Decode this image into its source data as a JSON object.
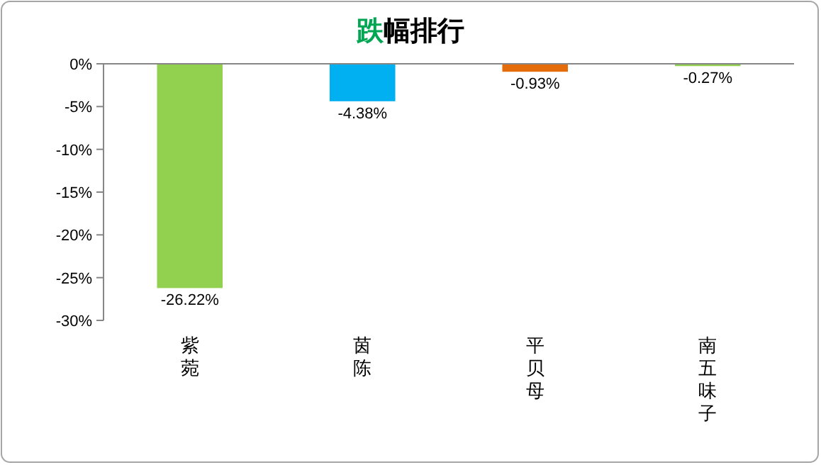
{
  "chart_data": {
    "type": "bar",
    "title": "跌幅排行",
    "categories": [
      "紫菀",
      "茵陈",
      "平贝母",
      "南五味子"
    ],
    "values": [
      -26.22,
      -4.38,
      -0.93,
      -0.27
    ],
    "colors": [
      "#92d050",
      "#00b0f0",
      "#e46c0a",
      "#92d050"
    ],
    "value_labels": [
      "-26.22%",
      "-4.38%",
      "-0.93%",
      "-0.27%"
    ],
    "ylim": [
      -30,
      0
    ],
    "yticks": [
      {
        "value": 0,
        "label": "0%"
      },
      {
        "value": -5,
        "label": "-5%"
      },
      {
        "value": -10,
        "label": "-10%"
      },
      {
        "value": -15,
        "label": "-15%"
      },
      {
        "value": -20,
        "label": "-20%"
      },
      {
        "value": -25,
        "label": "-25%"
      },
      {
        "value": -30,
        "label": "-30%"
      }
    ],
    "grid": false
  }
}
